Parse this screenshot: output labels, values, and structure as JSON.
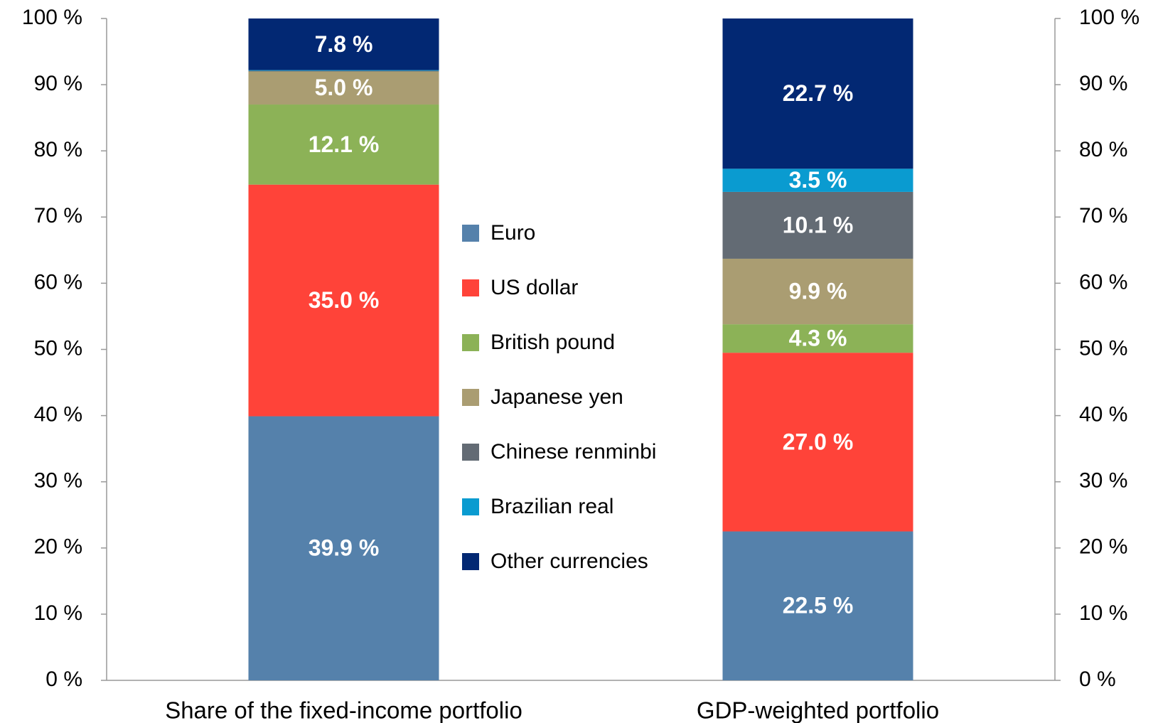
{
  "chart_data": {
    "type": "stacked_bar",
    "categories": [
      "Share of the fixed-income portfolio",
      "GDP-weighted portfolio"
    ],
    "series": [
      {
        "name": "Euro",
        "color": "#5581ab",
        "values": [
          39.9,
          22.5
        ],
        "value_labels": [
          "39.9 %",
          "22.5 %"
        ]
      },
      {
        "name": "US dollar",
        "color": "#ff4339",
        "values": [
          35.0,
          27.0
        ],
        "value_labels": [
          "35.0 %",
          "27.0 %"
        ]
      },
      {
        "name": "British pound",
        "color": "#8cb257",
        "values": [
          12.1,
          4.3
        ],
        "value_labels": [
          "12.1 %",
          "4.3 %"
        ]
      },
      {
        "name": "Japanese yen",
        "color": "#aa9d72",
        "values": [
          5.0,
          9.9
        ],
        "value_labels": [
          "5.0 %",
          "9.9 %"
        ]
      },
      {
        "name": "Chinese renminbi",
        "color": "#636b74",
        "values": [
          0.1,
          10.1
        ],
        "value_labels": [
          null,
          "10.1 %"
        ]
      },
      {
        "name": "Brazilian real",
        "color": "#0a9bd0",
        "values": [
          0.1,
          3.5
        ],
        "value_labels": [
          null,
          "3.5 %"
        ]
      },
      {
        "name": "Other currencies",
        "color": "#022873",
        "values": [
          7.8,
          22.7
        ],
        "value_labels": [
          "7.8 %",
          "22.7 %"
        ]
      }
    ],
    "ylim": [
      0,
      100
    ],
    "yticks": [
      {
        "value": 0,
        "label": "0 %"
      },
      {
        "value": 10,
        "label": "10 %"
      },
      {
        "value": 20,
        "label": "20 %"
      },
      {
        "value": 30,
        "label": "30 %"
      },
      {
        "value": 40,
        "label": "40 %"
      },
      {
        "value": 50,
        "label": "50 %"
      },
      {
        "value": 60,
        "label": "60 %"
      },
      {
        "value": 70,
        "label": "70 %"
      },
      {
        "value": 80,
        "label": "80 %"
      },
      {
        "value": 90,
        "label": "90 %"
      },
      {
        "value": 100,
        "label": "100 %"
      }
    ],
    "y2lim": [
      0,
      100
    ],
    "y2ticks": [
      {
        "value": 0,
        "label": "0 %"
      },
      {
        "value": 10,
        "label": "10 %"
      },
      {
        "value": 20,
        "label": "20 %"
      },
      {
        "value": 30,
        "label": "30 %"
      },
      {
        "value": 40,
        "label": "40 %"
      },
      {
        "value": 50,
        "label": "50 %"
      },
      {
        "value": 60,
        "label": "60 %"
      },
      {
        "value": 70,
        "label": "70 %"
      },
      {
        "value": 80,
        "label": "80 %"
      },
      {
        "value": 90,
        "label": "90 %"
      },
      {
        "value": 100,
        "label": "100 %"
      }
    ],
    "grid": false,
    "legend": "center"
  }
}
